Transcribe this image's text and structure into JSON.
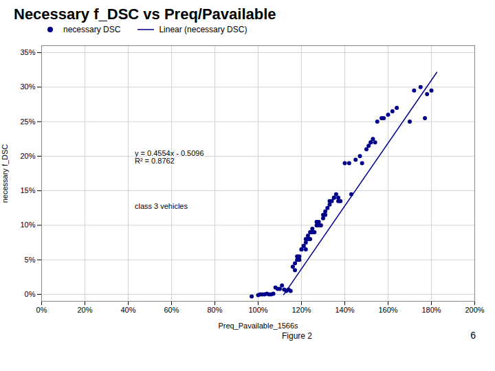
{
  "chart_data": {
    "type": "scatter",
    "title": "Necessary f_DSC vs Preq/Pavailable",
    "xlabel": "Preq_Pavailable_1566s",
    "ylabel": "necessary f_DSC",
    "xlim": [
      0.0,
      2.0
    ],
    "ylim": [
      -0.01,
      0.36
    ],
    "xticks": [
      {
        "value": 0.0,
        "label": "0%"
      },
      {
        "value": 0.2,
        "label": "20%"
      },
      {
        "value": 0.4,
        "label": "40%"
      },
      {
        "value": 0.6,
        "label": "60%"
      },
      {
        "value": 0.8,
        "label": "80%"
      },
      {
        "value": 1.0,
        "label": "100%"
      },
      {
        "value": 1.2,
        "label": "120%"
      },
      {
        "value": 1.4,
        "label": "140%"
      },
      {
        "value": 1.6,
        "label": "160%"
      },
      {
        "value": 1.8,
        "label": "180%"
      },
      {
        "value": 2.0,
        "label": "200%"
      }
    ],
    "yticks": [
      {
        "value": 0.0,
        "label": "0%"
      },
      {
        "value": 0.05,
        "label": "5%"
      },
      {
        "value": 0.1,
        "label": "10%"
      },
      {
        "value": 0.15,
        "label": "15%"
      },
      {
        "value": 0.2,
        "label": "20%"
      },
      {
        "value": 0.25,
        "label": "25%"
      },
      {
        "value": 0.3,
        "label": "30%"
      },
      {
        "value": 0.35,
        "label": "35%"
      }
    ],
    "grid": true,
    "legend": "upper left",
    "series": [
      {
        "name": "necessary DSC",
        "type": "scatter",
        "color": "#00008B",
        "marker": "circle",
        "x": [
          0.97,
          1.0,
          1.01,
          1.02,
          1.03,
          1.04,
          1.05,
          1.06,
          1.07,
          1.08,
          1.09,
          1.1,
          1.11,
          1.12,
          1.13,
          1.14,
          1.15,
          1.16,
          1.17,
          1.17,
          1.18,
          1.18,
          1.19,
          1.19,
          1.2,
          1.2,
          1.21,
          1.21,
          1.22,
          1.22,
          1.22,
          1.23,
          1.23,
          1.24,
          1.24,
          1.25,
          1.25,
          1.26,
          1.27,
          1.27,
          1.28,
          1.28,
          1.29,
          1.3,
          1.3,
          1.31,
          1.31,
          1.32,
          1.33,
          1.33,
          1.34,
          1.35,
          1.35,
          1.36,
          1.37,
          1.37,
          1.38,
          1.4,
          1.42,
          1.43,
          1.45,
          1.47,
          1.48,
          1.5,
          1.51,
          1.52,
          1.52,
          1.53,
          1.54,
          1.55,
          1.57,
          1.58,
          1.6,
          1.62,
          1.64,
          1.7,
          1.72,
          1.75,
          1.77,
          1.78,
          1.8
        ],
        "values": [
          -0.003,
          -0.001,
          0.0,
          0.0,
          0.0,
          0.001,
          0.0,
          0.0,
          0.001,
          0.01,
          0.008,
          0.008,
          0.013,
          0.007,
          0.005,
          0.007,
          0.005,
          0.04,
          0.035,
          0.045,
          0.05,
          0.055,
          0.055,
          0.05,
          0.065,
          0.065,
          0.07,
          0.07,
          0.065,
          0.075,
          0.08,
          0.08,
          0.085,
          0.09,
          0.08,
          0.09,
          0.095,
          0.09,
          0.1,
          0.105,
          0.105,
          0.1,
          0.1,
          0.11,
          0.115,
          0.115,
          0.12,
          0.125,
          0.13,
          0.135,
          0.135,
          0.14,
          0.14,
          0.145,
          0.14,
          0.135,
          0.135,
          0.19,
          0.19,
          0.145,
          0.195,
          0.2,
          0.19,
          0.21,
          0.215,
          0.22,
          0.22,
          0.225,
          0.22,
          0.25,
          0.255,
          0.255,
          0.26,
          0.265,
          0.27,
          0.25,
          0.295,
          0.3,
          0.255,
          0.29,
          0.295
        ]
      },
      {
        "name": "Linear (necessary DSC)",
        "type": "line",
        "color": "#00008B",
        "line_style": "solid",
        "x": [
          1.118,
          1.825
        ],
        "values": [
          -0.0004628,
          0.321505
        ]
      }
    ],
    "annotations": [
      "y = 0.4554x - 0.5096\nR² = 0.8762",
      "class 3 vehicles"
    ],
    "caption": "Figure 2",
    "page": "6"
  }
}
